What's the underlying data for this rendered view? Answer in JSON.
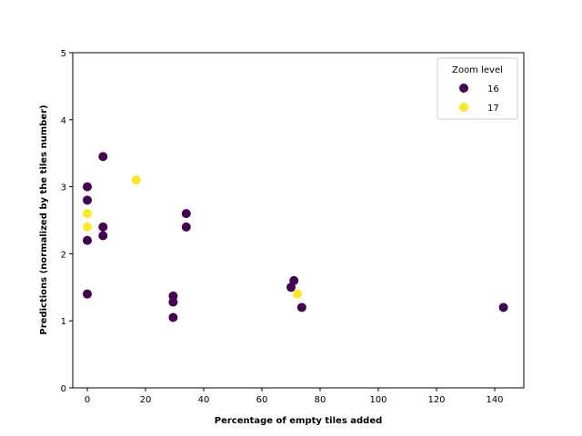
{
  "chart_data": {
    "type": "scatter",
    "xlabel": "Percentage of empty tiles added",
    "ylabel": "Predictions (normalized by the tiles number)",
    "xlim": [
      -5,
      150
    ],
    "ylim": [
      0,
      5
    ],
    "xticks": [
      0,
      20,
      40,
      60,
      80,
      100,
      120,
      140
    ],
    "yticks": [
      0,
      1,
      2,
      3,
      4,
      5
    ],
    "grid": false,
    "legend": {
      "title": "Zoom level",
      "position": "top-right"
    },
    "series": [
      {
        "name": "16",
        "color": "#440154",
        "points": [
          [
            0,
            3.0
          ],
          [
            0,
            2.8
          ],
          [
            0,
            2.2
          ],
          [
            0,
            1.4
          ],
          [
            5.4,
            3.45
          ],
          [
            5.4,
            2.4
          ],
          [
            5.4,
            2.27
          ],
          [
            29.5,
            1.37
          ],
          [
            29.5,
            1.28
          ],
          [
            29.5,
            1.05
          ],
          [
            34,
            2.6
          ],
          [
            34,
            2.4
          ],
          [
            70,
            1.5
          ],
          [
            71,
            1.6
          ],
          [
            73.7,
            1.2
          ],
          [
            143,
            1.2
          ]
        ]
      },
      {
        "name": "17",
        "color": "#fde725",
        "points": [
          [
            0,
            2.6
          ],
          [
            0,
            2.4
          ],
          [
            16.8,
            3.1
          ],
          [
            72.2,
            1.4
          ]
        ]
      }
    ]
  }
}
